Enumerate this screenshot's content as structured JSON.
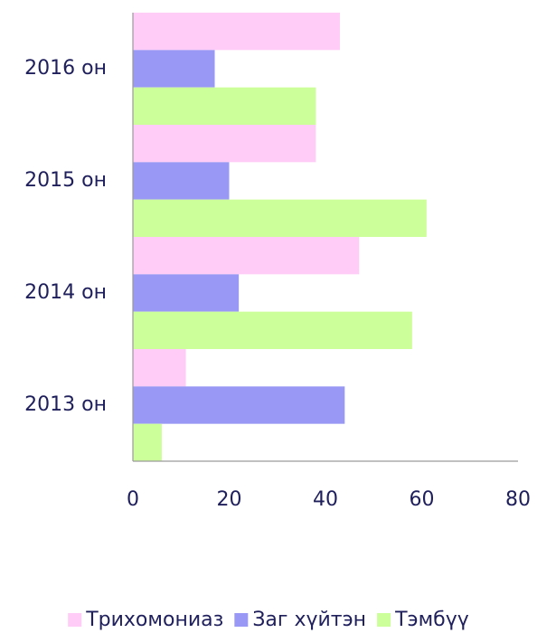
{
  "chart_data": {
    "type": "bar",
    "orientation": "horizontal",
    "categories": [
      "2013 он",
      "2014 он",
      "2015 он",
      "2016 он"
    ],
    "series": [
      {
        "name": "Трихомониаз",
        "color": "#ffccf7",
        "values": [
          11,
          47,
          38,
          43
        ]
      },
      {
        "name": "Заг хүйтэн",
        "color": "#9999f5",
        "values": [
          44,
          22,
          20,
          17
        ]
      },
      {
        "name": "Тэмбүү",
        "color": "#ccff99",
        "values": [
          6,
          58,
          61,
          38
        ]
      }
    ],
    "xlim": [
      0,
      80
    ],
    "xticks": [
      0,
      20,
      40,
      60,
      80
    ],
    "grid": false,
    "legend": "bottom"
  }
}
